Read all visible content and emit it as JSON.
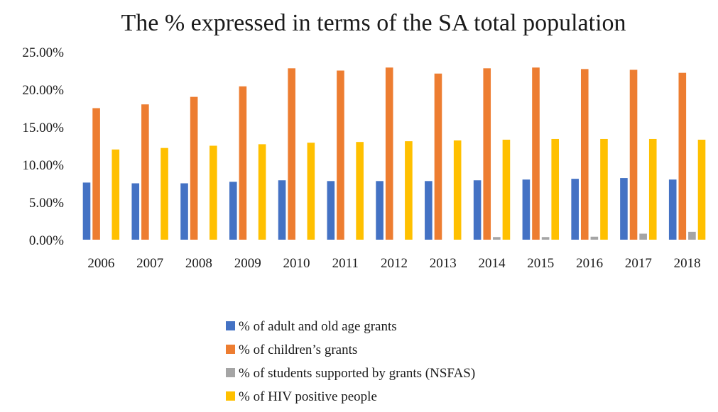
{
  "chart_data": {
    "type": "bar",
    "title": "The % expressed in terms of the SA total population",
    "xlabel": "",
    "ylabel": "",
    "categories": [
      "2006",
      "2007",
      "2008",
      "2009",
      "2010",
      "2011",
      "2012",
      "2013",
      "2014",
      "2015",
      "2016",
      "2017",
      "2018"
    ],
    "y_ticks": [
      "0.00%",
      "5.00%",
      "10.00%",
      "15.00%",
      "20.00%",
      "25.00%"
    ],
    "ylim": [
      0,
      25
    ],
    "grid": false,
    "legend_position": "bottom",
    "series": [
      {
        "name": "% of adult and old age grants",
        "color": "#4472C4",
        "values": [
          7.6,
          7.5,
          7.5,
          7.7,
          7.9,
          7.8,
          7.8,
          7.8,
          7.9,
          8.0,
          8.1,
          8.2,
          8.0
        ]
      },
      {
        "name": "% of children’s grants",
        "color": "#ED7D31",
        "values": [
          17.5,
          18.0,
          19.0,
          20.4,
          22.8,
          22.5,
          22.9,
          22.1,
          22.8,
          22.9,
          22.7,
          22.6,
          22.2
        ]
      },
      {
        "name": "% of students supported by grants (NSFAS)",
        "color": "#A5A5A5",
        "values": [
          0,
          0,
          0,
          0,
          0,
          0,
          0,
          0,
          0.35,
          0.35,
          0.4,
          0.8,
          1.05
        ]
      },
      {
        "name": "% of HIV positive people",
        "color": "#FFC000",
        "values": [
          12.0,
          12.2,
          12.5,
          12.7,
          12.9,
          13.0,
          13.1,
          13.2,
          13.3,
          13.4,
          13.4,
          13.4,
          13.3
        ]
      }
    ]
  }
}
